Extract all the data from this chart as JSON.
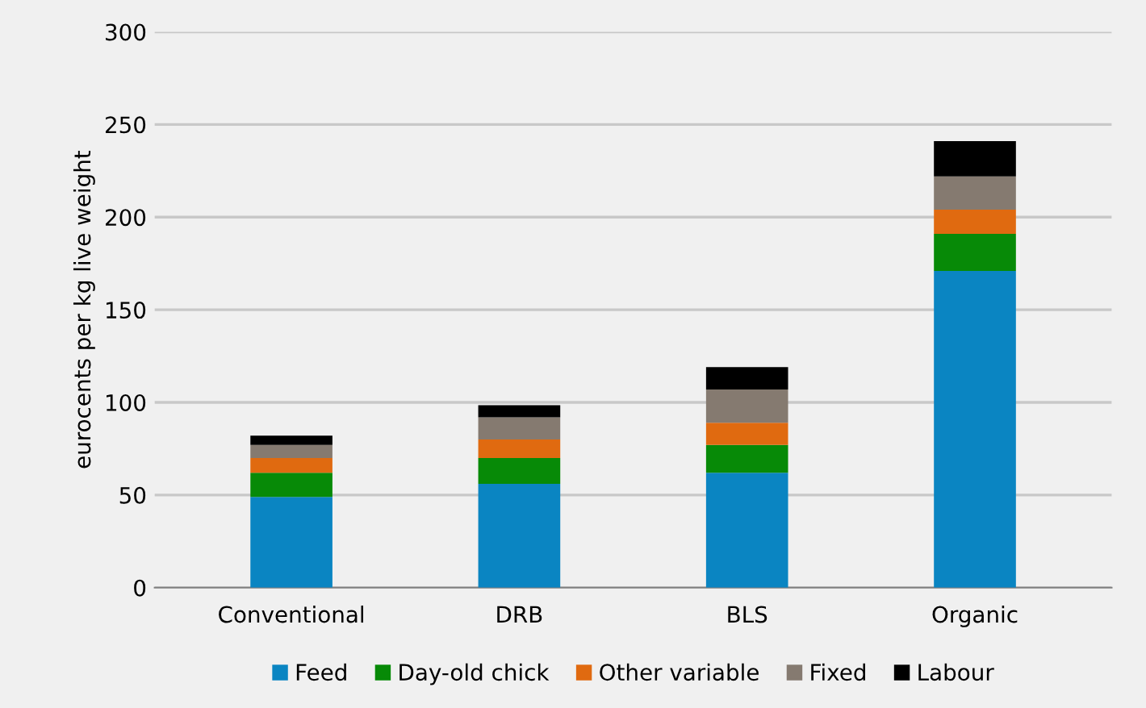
{
  "chart_data": {
    "type": "bar",
    "stacked": true,
    "ylabel": "eurocents per kg live weight",
    "categories": [
      "Conventional",
      "DRB",
      "BLS",
      "Organic"
    ],
    "series": [
      {
        "name": "Feed",
        "color": "#0a85c2",
        "values": [
          49,
          56,
          62,
          171
        ]
      },
      {
        "name": "Day-old chick",
        "color": "#078a07",
        "values": [
          13,
          14,
          15,
          20
        ]
      },
      {
        "name": "Other variable",
        "color": "#e06a10",
        "values": [
          8,
          10,
          12,
          13
        ]
      },
      {
        "name": "Fixed",
        "color": "#857a70",
        "values": [
          7,
          12,
          18,
          18
        ]
      },
      {
        "name": "Labour",
        "color": "#000000",
        "values": [
          5,
          6.5,
          12,
          19
        ]
      }
    ],
    "ylim": [
      0,
      300
    ],
    "yticks": [
      0,
      50,
      100,
      150,
      200,
      250,
      300
    ],
    "grid": "y",
    "legend": "bottom"
  }
}
